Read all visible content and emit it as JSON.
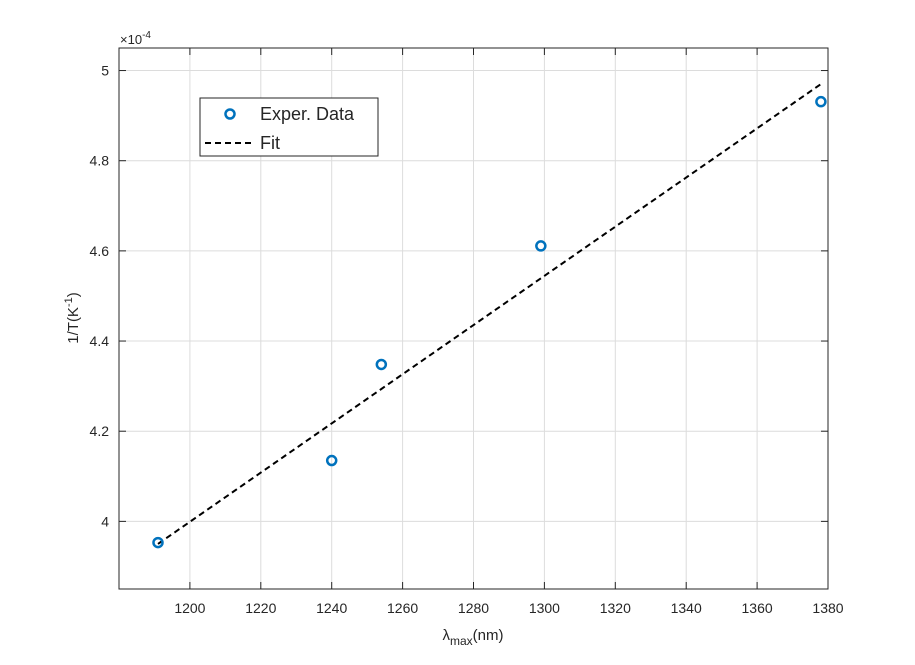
{
  "chart_data": {
    "type": "scatter",
    "xlabel": {
      "symbol": "λ",
      "subscript": "max",
      "unit": "(nm)"
    },
    "ylabel": {
      "prefix": "1/T(K",
      "superscript": "-1",
      "suffix": ")"
    },
    "exponent_label": {
      "base": "×10",
      "power": "-4"
    },
    "xlim": [
      1180,
      1380
    ],
    "ylim": [
      3.85,
      5.05
    ],
    "y_scale_multiplier": 0.0001,
    "x_ticks": [
      1200,
      1220,
      1240,
      1260,
      1280,
      1300,
      1320,
      1340,
      1360,
      1380
    ],
    "y_ticks": [
      4,
      4.2,
      4.4,
      4.6,
      4.8,
      5
    ],
    "y_tick_labels": [
      "4",
      "4.2",
      "4.4",
      "4.6",
      "4.8",
      "5"
    ],
    "grid": true,
    "legend_position": "top-left",
    "series": [
      {
        "name": "Exper. Data",
        "kind": "markers",
        "color": "#0072BD",
        "x": [
          1191,
          1240,
          1254,
          1299,
          1378
        ],
        "y": [
          3.953,
          4.135,
          4.348,
          4.611,
          4.931
        ]
      },
      {
        "name": "Fit",
        "kind": "dashed-line",
        "color": "#000000",
        "x": [
          1191,
          1378
        ],
        "y": [
          3.95,
          4.97
        ]
      }
    ]
  }
}
